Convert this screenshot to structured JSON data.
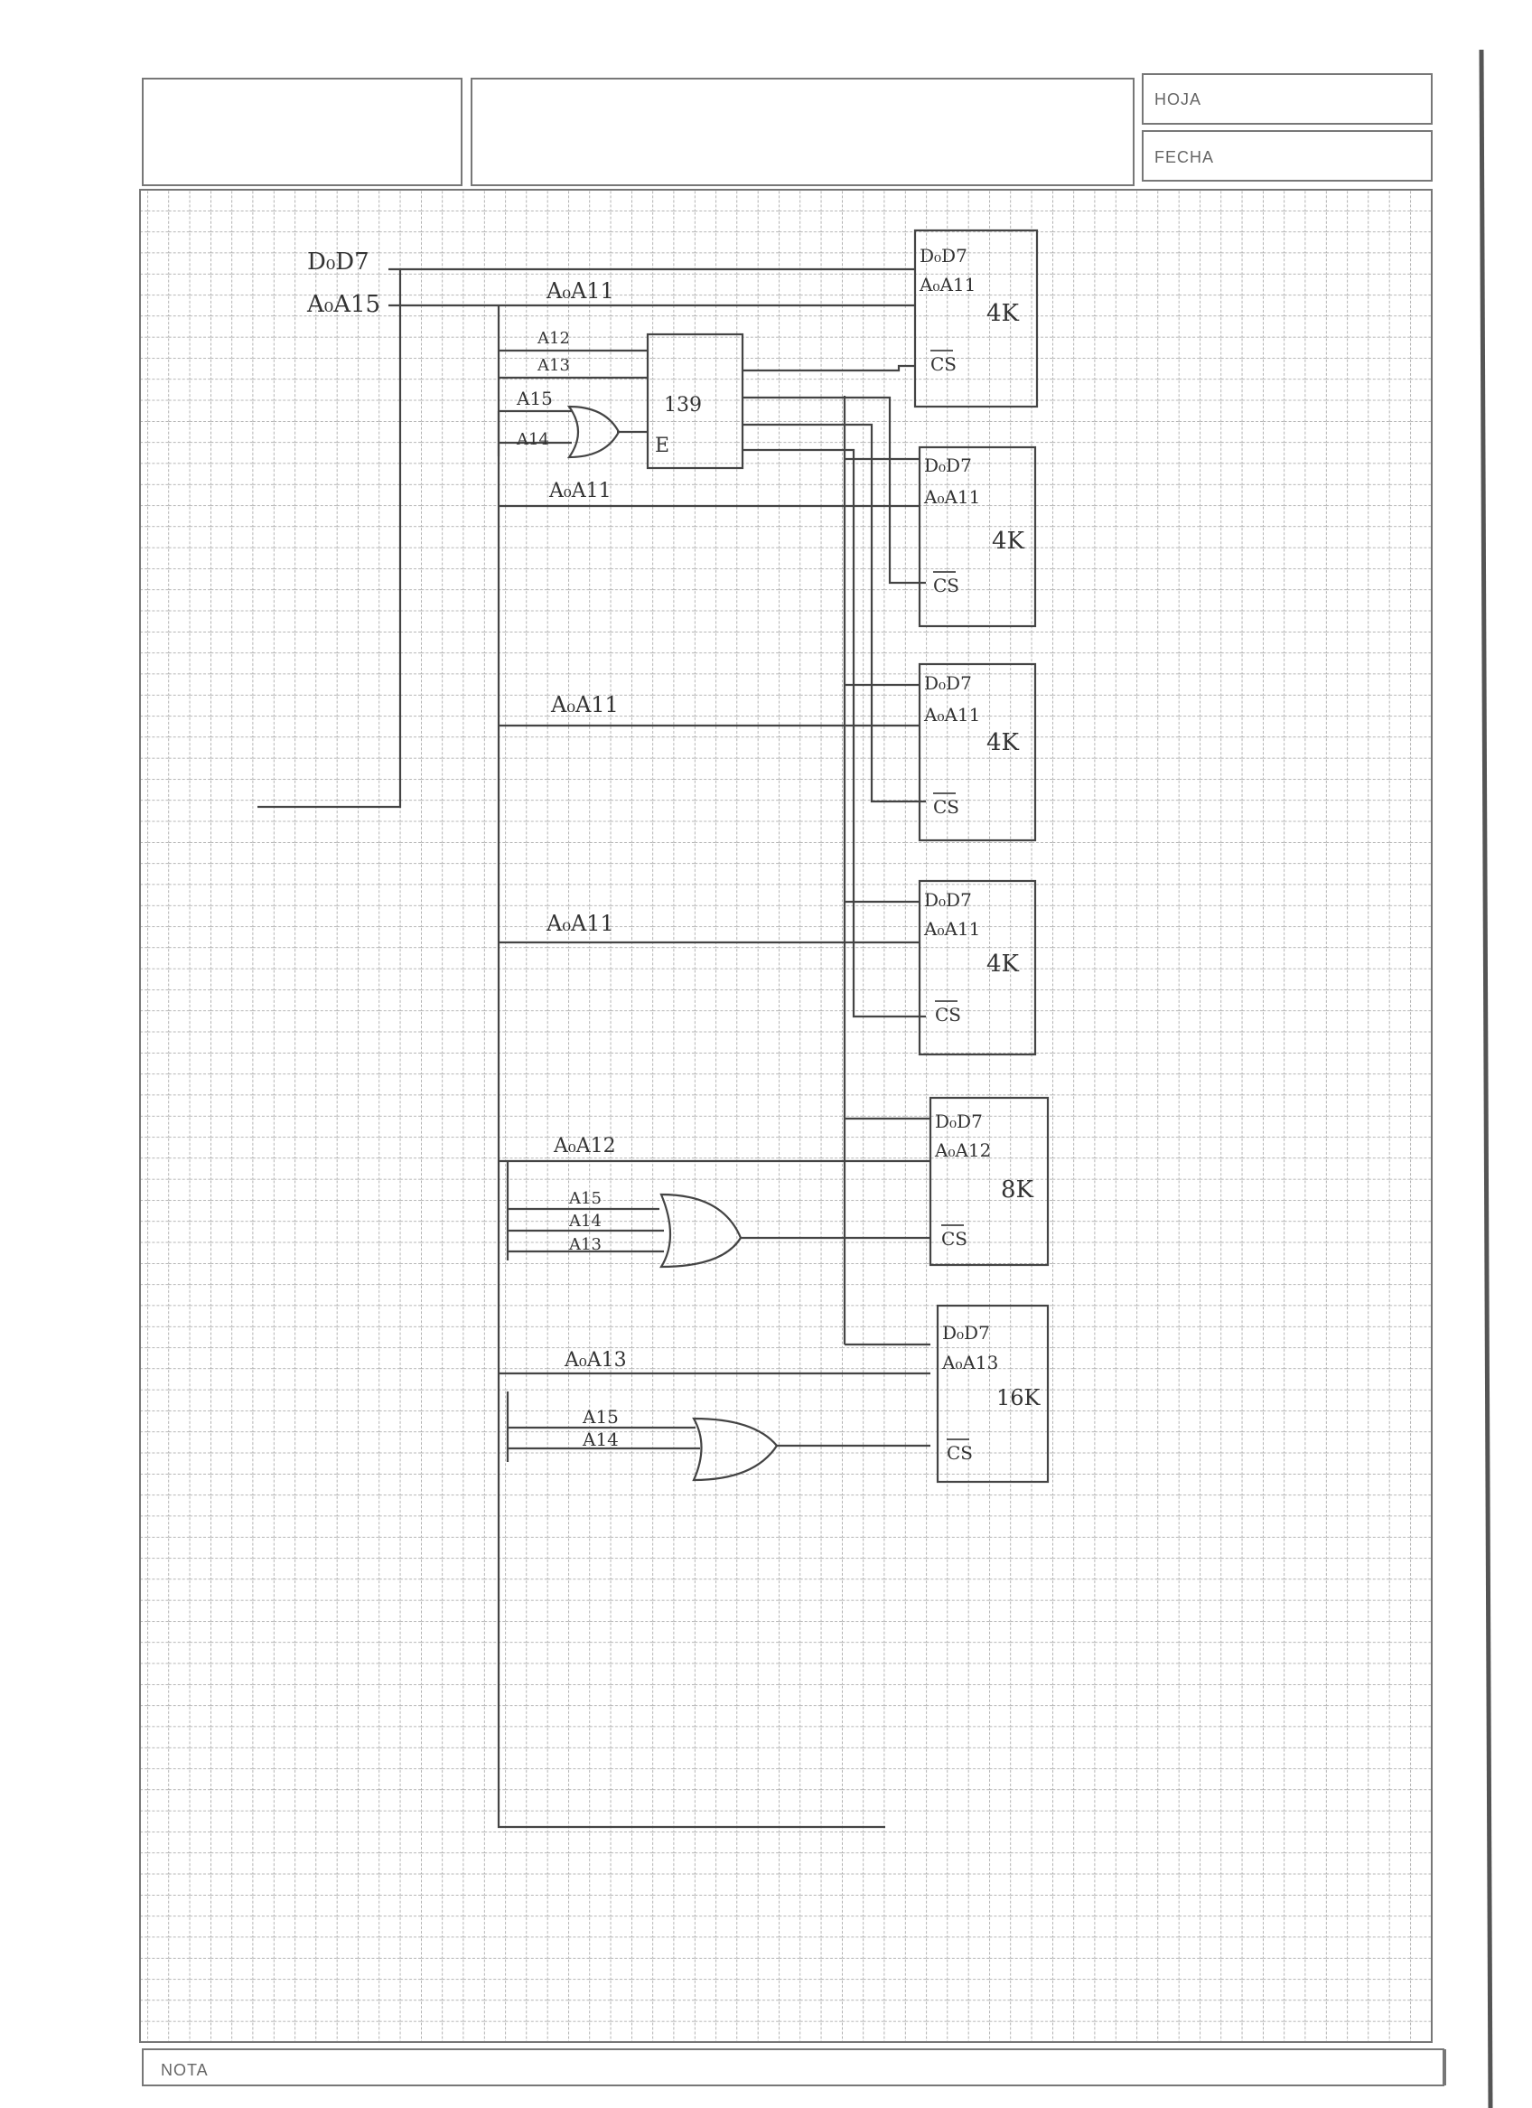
{
  "header": {
    "hoja_label": "HOJA",
    "fecha_label": "FECHA"
  },
  "footer": {
    "nota_label": "NOTA"
  },
  "bus": {
    "data_bus": "D₀D7",
    "addr_bus": "A₀A15"
  },
  "decoder": {
    "addr_line": "A₀A11",
    "in_a12": "A12",
    "in_a13": "A13",
    "gate_in_a15": "A15",
    "gate_in_a14": "A14",
    "chip_label": "139",
    "enable_label": "E",
    "branch_addr": "A₀A11"
  },
  "memories": [
    {
      "data": "D₀D7",
      "addr": "A₀A11",
      "size": "4K",
      "cs": "CS"
    },
    {
      "data": "D₀D7",
      "addr": "A₀A11",
      "size": "4K",
      "cs": "CS"
    },
    {
      "data": "D₀D7",
      "addr": "A₀A11",
      "size": "4K",
      "cs": "CS"
    },
    {
      "data": "D₀D7",
      "addr": "A₀A11",
      "size": "4K",
      "cs": "CS"
    },
    {
      "data": "D₀D7",
      "addr": "A₀A12",
      "size": "8K",
      "cs": "CS"
    },
    {
      "data": "D₀D7",
      "addr": "A₀A13",
      "size": "16K",
      "cs": "CS"
    }
  ],
  "branches": {
    "addr_3": "A₀A11",
    "addr_4": "A₀A11",
    "addr_5": "A₀A12",
    "addr_6": "A₀A13"
  },
  "gate2": {
    "in1": "A15",
    "in2": "A14",
    "in3": "A13"
  },
  "gate3": {
    "in1": "A15",
    "in2": "A14"
  }
}
